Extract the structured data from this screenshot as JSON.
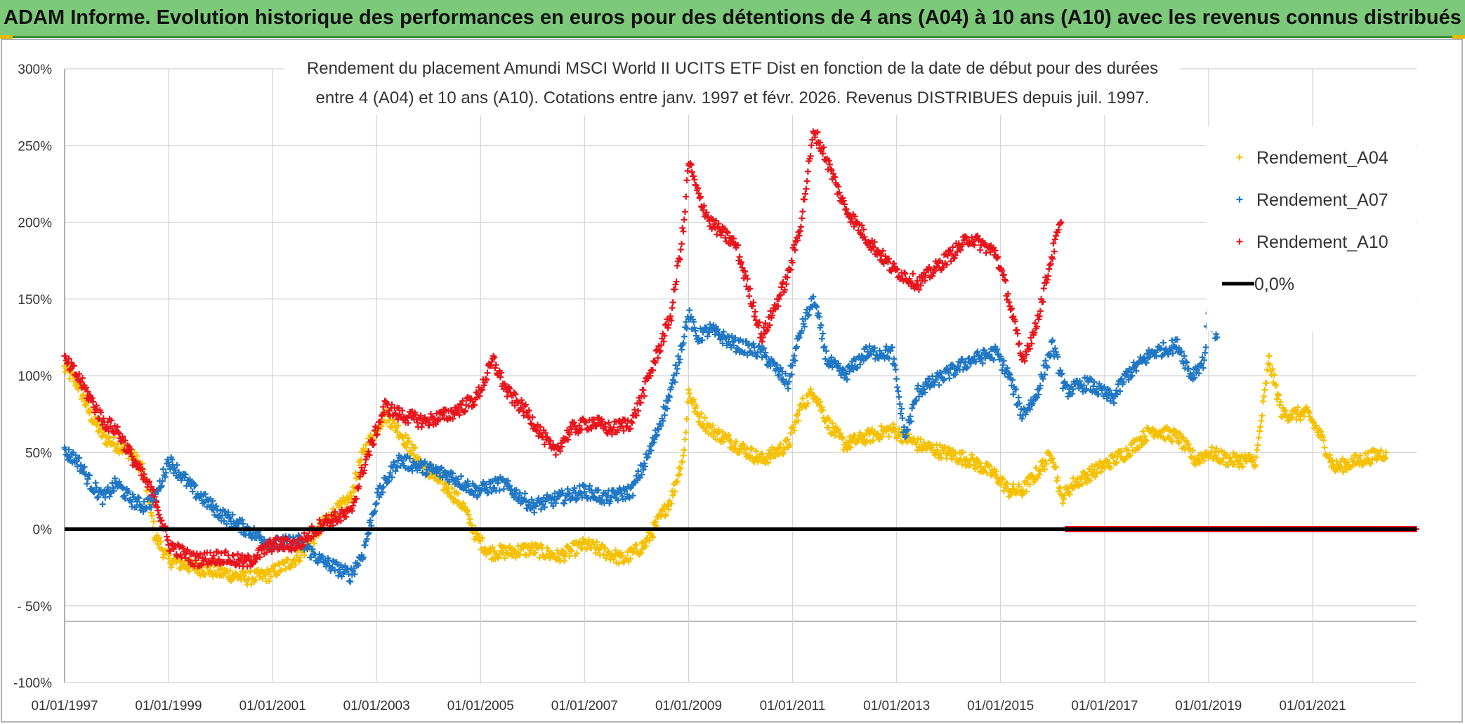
{
  "banner": {
    "title": "ADAM Informe. Evolution historique des performances en euros pour des détentions de 4 ans (A04) à 10 ans (A10) avec les revenus connus distribués"
  },
  "colors": {
    "banner_bg": "#7dc97a",
    "A04": "#f5c000",
    "A07": "#1f77c4",
    "A10": "#e8141c",
    "zero": "#000000"
  },
  "chart_data": {
    "type": "scatter",
    "title_lines": [
      "Rendement du placement Amundi MSCI World II UCITS ETF Dist en fonction de la date de début pour des durées",
      "entre 4 (A04) et 10 ans (A10). Cotations entre janv. 1997 et févr. 2026. Revenus DISTRIBUES depuis juil. 1997."
    ],
    "x_ticks": [
      "01/01/1997",
      "01/01/1999",
      "01/01/2001",
      "01/01/2003",
      "01/01/2005",
      "01/01/2007",
      "01/01/2009",
      "01/01/2011",
      "01/01/2013",
      "01/01/2015",
      "01/01/2017",
      "01/01/2019",
      "01/01/2021"
    ],
    "y_ticks": [
      "300%",
      "250%",
      "200%",
      "150%",
      "100%",
      "50%",
      "0%",
      "- 50%",
      "-100%"
    ],
    "y_tick_values": [
      300,
      250,
      200,
      150,
      100,
      50,
      0,
      -50,
      -100
    ],
    "xlim": [
      "1997-01-01",
      "2023-01-01"
    ],
    "ylim": [
      -100,
      300
    ],
    "grid": true,
    "legend_position": "top-right",
    "series": [
      {
        "name": "Rendement_A04",
        "marker": "+",
        "color": "#f5c000",
        "points": [
          [
            "1997-01-01",
            105
          ],
          [
            "1997-04-01",
            95
          ],
          [
            "1997-07-01",
            75
          ],
          [
            "1997-10-01",
            60
          ],
          [
            "1998-01-01",
            55
          ],
          [
            "1998-04-01",
            50
          ],
          [
            "1998-07-01",
            40
          ],
          [
            "1998-10-01",
            -5
          ],
          [
            "1999-01-01",
            -20
          ],
          [
            "1999-07-01",
            -25
          ],
          [
            "2000-01-01",
            -28
          ],
          [
            "2000-07-01",
            -32
          ],
          [
            "2000-12-01",
            -30
          ],
          [
            "2001-06-01",
            -20
          ],
          [
            "2001-09-01",
            -12
          ],
          [
            "2002-01-01",
            5
          ],
          [
            "2002-07-01",
            20
          ],
          [
            "2002-10-01",
            50
          ],
          [
            "2003-03-01",
            75
          ],
          [
            "2003-06-01",
            65
          ],
          [
            "2003-12-01",
            40
          ],
          [
            "2004-06-01",
            25
          ],
          [
            "2004-09-01",
            15
          ],
          [
            "2004-12-01",
            -5
          ],
          [
            "2005-03-01",
            -15
          ],
          [
            "2005-07-01",
            -15
          ],
          [
            "2006-01-01",
            -13
          ],
          [
            "2006-07-01",
            -18
          ],
          [
            "2007-01-01",
            -10
          ],
          [
            "2007-06-01",
            -15
          ],
          [
            "2007-10-01",
            -20
          ],
          [
            "2008-03-01",
            -10
          ],
          [
            "2008-06-01",
            5
          ],
          [
            "2008-09-01",
            20
          ],
          [
            "2008-12-01",
            50
          ],
          [
            "2009-01-01",
            90
          ],
          [
            "2009-03-01",
            75
          ],
          [
            "2009-06-01",
            65
          ],
          [
            "2009-12-01",
            55
          ],
          [
            "2010-06-01",
            45
          ],
          [
            "2010-12-01",
            55
          ],
          [
            "2011-03-01",
            80
          ],
          [
            "2011-06-01",
            90
          ],
          [
            "2011-09-01",
            70
          ],
          [
            "2012-01-01",
            55
          ],
          [
            "2012-06-01",
            60
          ],
          [
            "2012-12-01",
            65
          ],
          [
            "2013-06-01",
            55
          ],
          [
            "2013-12-01",
            50
          ],
          [
            "2014-06-01",
            45
          ],
          [
            "2014-12-01",
            35
          ],
          [
            "2015-03-01",
            25
          ],
          [
            "2015-06-01",
            25
          ],
          [
            "2015-09-01",
            35
          ],
          [
            "2016-01-01",
            50
          ],
          [
            "2016-03-01",
            20
          ],
          [
            "2016-06-01",
            30
          ],
          [
            "2016-12-01",
            40
          ],
          [
            "2017-06-01",
            50
          ],
          [
            "2017-12-01",
            65
          ],
          [
            "2018-06-01",
            60
          ],
          [
            "2018-10-01",
            45
          ],
          [
            "2019-01-01",
            50
          ],
          [
            "2019-06-01",
            45
          ],
          [
            "2019-12-01",
            45
          ],
          [
            "2020-03-01",
            110
          ],
          [
            "2020-06-01",
            75
          ],
          [
            "2020-12-01",
            75
          ],
          [
            "2021-03-01",
            60
          ],
          [
            "2021-06-01",
            40
          ],
          [
            "2021-12-01",
            45
          ],
          [
            "2022-06-01",
            50
          ]
        ]
      },
      {
        "name": "Rendement_A07",
        "marker": "+",
        "color": "#1f77c4",
        "points": [
          [
            "1997-01-01",
            50
          ],
          [
            "1997-04-01",
            45
          ],
          [
            "1997-07-01",
            30
          ],
          [
            "1997-10-01",
            20
          ],
          [
            "1998-01-01",
            30
          ],
          [
            "1998-04-01",
            20
          ],
          [
            "1998-07-01",
            15
          ],
          [
            "1998-10-01",
            20
          ],
          [
            "1999-01-01",
            45
          ],
          [
            "1999-04-01",
            35
          ],
          [
            "1999-07-01",
            25
          ],
          [
            "2000-01-01",
            10
          ],
          [
            "2000-07-01",
            0
          ],
          [
            "2001-01-01",
            -10
          ],
          [
            "2001-07-01",
            -8
          ],
          [
            "2001-12-01",
            -20
          ],
          [
            "2002-07-01",
            -30
          ],
          [
            "2002-10-01",
            -15
          ],
          [
            "2003-01-01",
            20
          ],
          [
            "2003-06-01",
            45
          ],
          [
            "2003-12-01",
            40
          ],
          [
            "2004-06-01",
            35
          ],
          [
            "2004-12-01",
            25
          ],
          [
            "2005-06-01",
            30
          ],
          [
            "2006-01-01",
            15
          ],
          [
            "2006-07-01",
            20
          ],
          [
            "2007-01-01",
            25
          ],
          [
            "2007-06-01",
            20
          ],
          [
            "2007-12-01",
            25
          ],
          [
            "2008-04-01",
            50
          ],
          [
            "2008-09-01",
            90
          ],
          [
            "2009-01-01",
            140
          ],
          [
            "2009-03-01",
            125
          ],
          [
            "2009-06-01",
            130
          ],
          [
            "2009-12-01",
            120
          ],
          [
            "2010-06-01",
            115
          ],
          [
            "2010-12-01",
            95
          ],
          [
            "2011-03-01",
            130
          ],
          [
            "2011-06-01",
            150
          ],
          [
            "2011-09-01",
            110
          ],
          [
            "2012-01-01",
            100
          ],
          [
            "2012-06-01",
            115
          ],
          [
            "2012-12-01",
            115
          ],
          [
            "2013-03-01",
            60
          ],
          [
            "2013-06-01",
            90
          ],
          [
            "2013-12-01",
            100
          ],
          [
            "2014-06-01",
            110
          ],
          [
            "2014-12-01",
            115
          ],
          [
            "2015-03-01",
            100
          ],
          [
            "2015-06-01",
            75
          ],
          [
            "2015-09-01",
            85
          ],
          [
            "2016-01-01",
            120
          ],
          [
            "2016-04-01",
            90
          ],
          [
            "2016-09-01",
            95
          ],
          [
            "2017-03-01",
            85
          ],
          [
            "2017-06-01",
            100
          ],
          [
            "2017-12-01",
            115
          ],
          [
            "2018-06-01",
            120
          ],
          [
            "2018-09-01",
            100
          ],
          [
            "2018-12-01",
            110
          ],
          [
            "2019-01-01",
            140
          ],
          [
            "2019-03-01",
            125
          ]
        ]
      },
      {
        "name": "Rendement_A10",
        "marker": "+",
        "color": "#e8141c",
        "points": [
          [
            "1997-01-01",
            110
          ],
          [
            "1997-04-01",
            100
          ],
          [
            "1997-07-01",
            85
          ],
          [
            "1997-10-01",
            70
          ],
          [
            "1998-01-01",
            65
          ],
          [
            "1998-04-01",
            50
          ],
          [
            "1998-07-01",
            35
          ],
          [
            "1998-10-01",
            20
          ],
          [
            "1999-01-01",
            -10
          ],
          [
            "1999-07-01",
            -20
          ],
          [
            "2000-01-01",
            -18
          ],
          [
            "2000-07-01",
            -22
          ],
          [
            "2001-01-01",
            -10
          ],
          [
            "2001-07-01",
            -10
          ],
          [
            "2002-01-01",
            5
          ],
          [
            "2002-07-01",
            10
          ],
          [
            "2002-10-01",
            40
          ],
          [
            "2003-03-01",
            80
          ],
          [
            "2003-06-01",
            75
          ],
          [
            "2003-12-01",
            70
          ],
          [
            "2004-06-01",
            75
          ],
          [
            "2004-12-01",
            85
          ],
          [
            "2005-04-01",
            110
          ],
          [
            "2005-07-01",
            90
          ],
          [
            "2005-12-01",
            75
          ],
          [
            "2006-06-01",
            50
          ],
          [
            "2006-10-01",
            65
          ],
          [
            "2007-03-01",
            70
          ],
          [
            "2007-07-01",
            65
          ],
          [
            "2007-12-01",
            70
          ],
          [
            "2008-04-01",
            100
          ],
          [
            "2008-09-01",
            140
          ],
          [
            "2008-12-01",
            200
          ],
          [
            "2009-01-01",
            240
          ],
          [
            "2009-03-01",
            220
          ],
          [
            "2009-06-01",
            200
          ],
          [
            "2009-12-01",
            185
          ],
          [
            "2010-06-01",
            125
          ],
          [
            "2010-12-01",
            165
          ],
          [
            "2011-03-01",
            200
          ],
          [
            "2011-06-01",
            260
          ],
          [
            "2011-09-01",
            240
          ],
          [
            "2012-01-01",
            210
          ],
          [
            "2012-06-01",
            190
          ],
          [
            "2012-12-01",
            170
          ],
          [
            "2013-06-01",
            160
          ],
          [
            "2013-12-01",
            175
          ],
          [
            "2014-06-01",
            190
          ],
          [
            "2014-12-01",
            180
          ],
          [
            "2015-03-01",
            150
          ],
          [
            "2015-06-01",
            110
          ],
          [
            "2015-09-01",
            130
          ],
          [
            "2016-01-01",
            180
          ],
          [
            "2016-03-01",
            200
          ]
        ]
      },
      {
        "name": "0,0%",
        "marker": "line",
        "color": "#000000",
        "points": [
          [
            "1997-01-01",
            0
          ],
          [
            "2023-01-01",
            0
          ]
        ]
      }
    ],
    "zero_markers_note_series": "Rendement_A10",
    "zero_markers_range": [
      "2016-04-01",
      "2023-01-01"
    ]
  }
}
